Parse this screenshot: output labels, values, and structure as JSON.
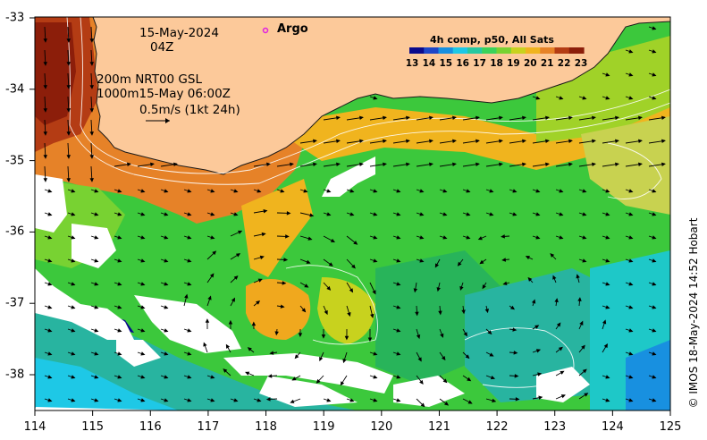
{
  "header": {
    "date": "15-May-2024",
    "time": "04Z",
    "contour_line1": "200m  NRT00 GSL",
    "contour_line2": "1000m15-May 06:00Z",
    "vector_scale": "0.5m/s (1kt 24h)",
    "argo_label": "Argo"
  },
  "colorbar": {
    "title": "4h comp, p50, All Sats",
    "labels": [
      "13",
      "14",
      "15",
      "16",
      "17",
      "18",
      "19",
      "20",
      "21",
      "22",
      "23"
    ],
    "colors": [
      "#0a0a8c",
      "#1e46c8",
      "#1890e0",
      "#1ec8e6",
      "#28c8a0",
      "#3cd25a",
      "#78d232",
      "#c8d21e",
      "#f0b41e",
      "#e68228",
      "#b43c14",
      "#8c1e0a"
    ]
  },
  "axes": {
    "x_ticks": [
      "114",
      "115",
      "116",
      "117",
      "118",
      "119",
      "120",
      "121",
      "122",
      "123",
      "124",
      "125"
    ],
    "y_ticks": [
      "-33",
      "-34",
      "-35",
      "-36",
      "-37",
      "-38"
    ]
  },
  "credit": "© IMOS 18-May-2024 14:52 Hobart",
  "colors": {
    "land": "#fcc99a",
    "coast": "#1a1a1a",
    "argo": "#e020e0"
  }
}
